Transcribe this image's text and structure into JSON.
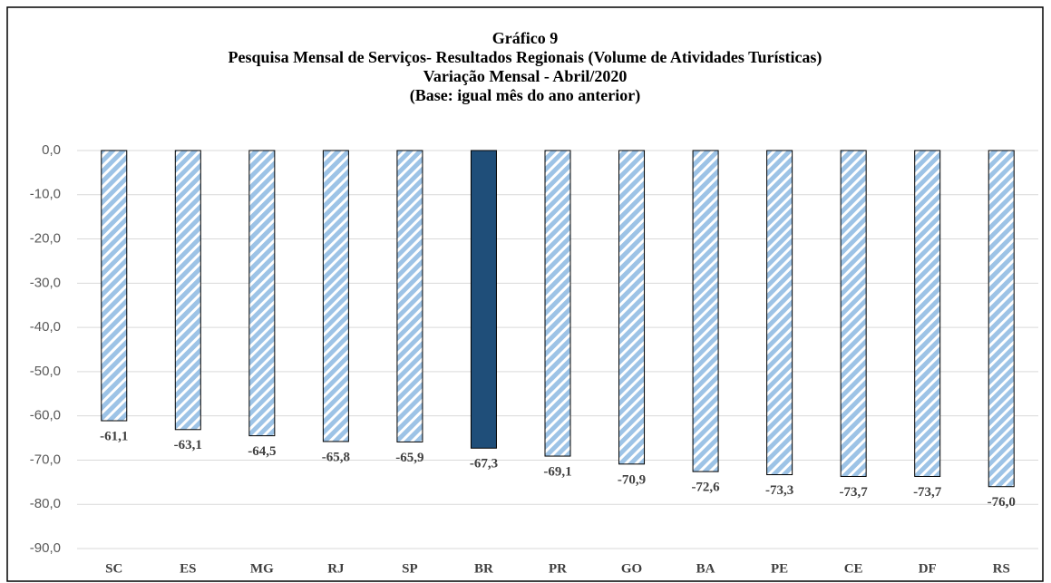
{
  "chart_data": {
    "type": "bar",
    "title": "Gráfico 9",
    "subtitle": [
      "Pesquisa Mensal de Serviços- Resultados Regionais (Volume de Atividades Turísticas)",
      "Variação Mensal - Abril/2020",
      "(Base: igual mês do ano anterior)"
    ],
    "categories": [
      "SC",
      "ES",
      "MG",
      "RJ",
      "SP",
      "BR",
      "PR",
      "GO",
      "BA",
      "PE",
      "CE",
      "DF",
      "RS"
    ],
    "values": [
      -61.1,
      -63.1,
      -64.5,
      -65.8,
      -65.9,
      -67.3,
      -69.1,
      -70.9,
      -72.6,
      -73.3,
      -73.7,
      -73.7,
      -76.0
    ],
    "value_labels": [
      "-61,1",
      "-63,1",
      "-64,5",
      "-65,8",
      "-65,9",
      "-67,3",
      "-69,1",
      "-70,9",
      "-72,6",
      "-73,3",
      "-73,7",
      "-73,7",
      "-76,0"
    ],
    "colors": [
      "#9dc3e6",
      "#9dc3e6",
      "#9dc3e6",
      "#9dc3e6",
      "#9dc3e6",
      "#1f4e79",
      "#9dc3e6",
      "#9dc3e6",
      "#9dc3e6",
      "#9dc3e6",
      "#9dc3e6",
      "#9dc3e6",
      "#9dc3e6"
    ],
    "hatched_color": "#9dc3e6",
    "ylim": [
      -90,
      0
    ],
    "yticks": [
      {
        "value": 0,
        "label": "0,0"
      },
      {
        "value": -10,
        "label": "-10,0"
      },
      {
        "value": -20,
        "label": "-20,0"
      },
      {
        "value": -30,
        "label": "-30,0"
      },
      {
        "value": -40,
        "label": "-40,0"
      },
      {
        "value": -50,
        "label": "-50,0"
      },
      {
        "value": -60,
        "label": "-60,0"
      },
      {
        "value": -70,
        "label": "-70,0"
      },
      {
        "value": -80,
        "label": "-80,0"
      },
      {
        "value": -90,
        "label": "-90,0"
      }
    ],
    "grid": true
  }
}
